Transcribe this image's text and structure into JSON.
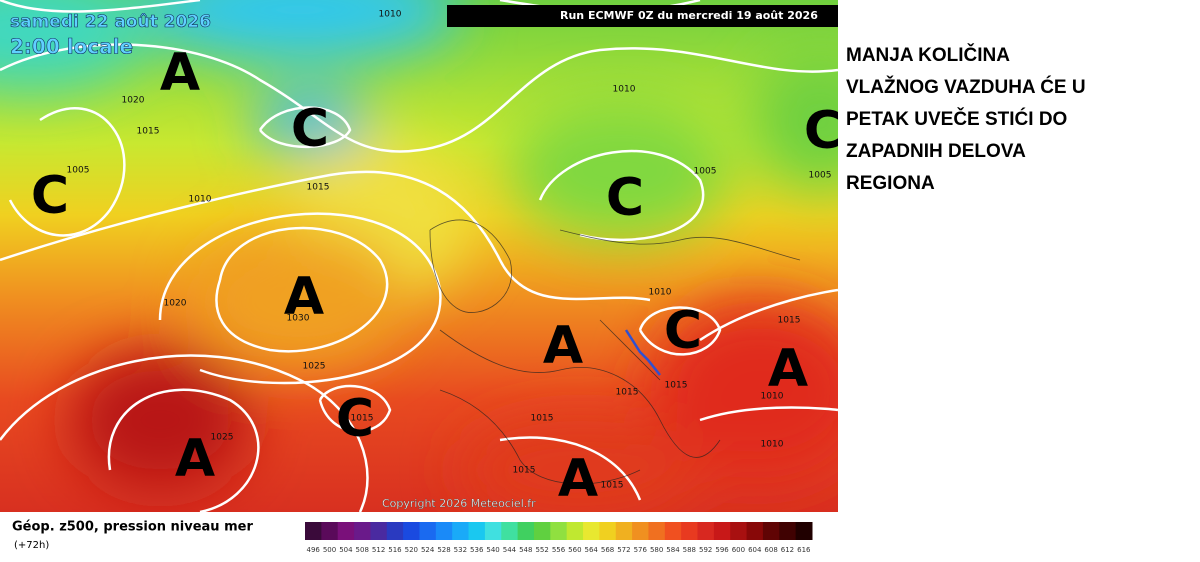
{
  "map": {
    "date": "samedi 22 août 2026",
    "time": "2:00 locale",
    "run": "Run ECMWF 0Z du mercredi 19 août 2026",
    "copyright": "Copyright 2026 Meteociel.fr",
    "pressure_labels": [
      "1010",
      "1020",
      "1015",
      "1005",
      "1010",
      "1015",
      "1010",
      "1005",
      "1005",
      "1020",
      "1030",
      "1025",
      "1015",
      "1025",
      "1010",
      "1015",
      "1015",
      "1015",
      "1015",
      "1010",
      "1010",
      "1015",
      "1015"
    ],
    "systems": [
      "A",
      "C",
      "C",
      "C",
      "C",
      "A",
      "A",
      "C",
      "A",
      "C",
      "A",
      "A"
    ]
  },
  "legend": {
    "title": "Géop. z500, pression niveau mer",
    "lead": "(+72h)",
    "labels": [
      496,
      500,
      504,
      508,
      512,
      516,
      520,
      524,
      528,
      532,
      536,
      540,
      544,
      548,
      552,
      556,
      560,
      564,
      568,
      572,
      576,
      580,
      584,
      588,
      592,
      596,
      600,
      604,
      608,
      612,
      616
    ],
    "colors": [
      "#3a0a3a",
      "#5a0a5a",
      "#7a107a",
      "#6a1a8a",
      "#4a2aa0",
      "#2a3ac0",
      "#1a4ae0",
      "#1a6af0",
      "#1a8af8",
      "#1aaaf8",
      "#1ac8f0",
      "#40e0e0",
      "#40e0a0",
      "#40d060",
      "#60d040",
      "#90e040",
      "#c0e830",
      "#e8e830",
      "#f0d020",
      "#f0b020",
      "#f09020",
      "#f07020",
      "#f05020",
      "#e83a20",
      "#d82820",
      "#c81818",
      "#a81010",
      "#880808",
      "#600404",
      "#400202",
      "#200000"
    ]
  },
  "note": {
    "lines": [
      "MANJA KOLIČINA",
      "VLAŽNOG VAZDUHA ĆE U",
      "PETAK UVEČE STIĆI DO",
      "ZAPADNIH DELOVA",
      "REGIONA"
    ]
  }
}
